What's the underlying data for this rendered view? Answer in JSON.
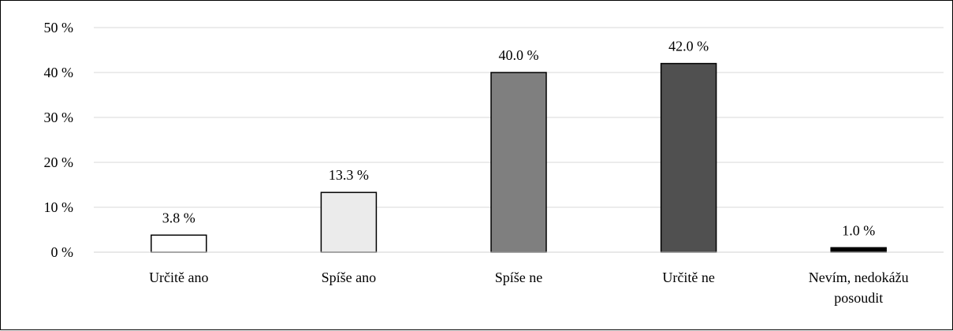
{
  "chart_data": {
    "type": "bar",
    "categories": [
      [
        "Určitě ano"
      ],
      [
        "Spíše ano"
      ],
      [
        "Spíše ne"
      ],
      [
        "Určitě ne"
      ],
      [
        "Nevím, nedokážu",
        "posoudit"
      ]
    ],
    "values": [
      3.8,
      13.3,
      40.0,
      42.0,
      1.0
    ],
    "data_labels": [
      "3.8 %",
      "13.3 %",
      "40.0 %",
      "42.0 %",
      "1.0 %"
    ],
    "bar_colors": [
      "#ffffff",
      "#ebebeb",
      "#7f7f7f",
      "#505050",
      "#000000"
    ],
    "y_ticks": [
      {
        "value": 0,
        "label": "0 %"
      },
      {
        "value": 10,
        "label": "10 %"
      },
      {
        "value": 20,
        "label": "20 %"
      },
      {
        "value": 30,
        "label": "30 %"
      },
      {
        "value": 40,
        "label": "40 %"
      },
      {
        "value": 50,
        "label": "50 %"
      }
    ],
    "ylim": [
      0,
      50
    ],
    "grid": true,
    "legend": false,
    "title": "",
    "xlabel": "",
    "ylabel": ""
  }
}
